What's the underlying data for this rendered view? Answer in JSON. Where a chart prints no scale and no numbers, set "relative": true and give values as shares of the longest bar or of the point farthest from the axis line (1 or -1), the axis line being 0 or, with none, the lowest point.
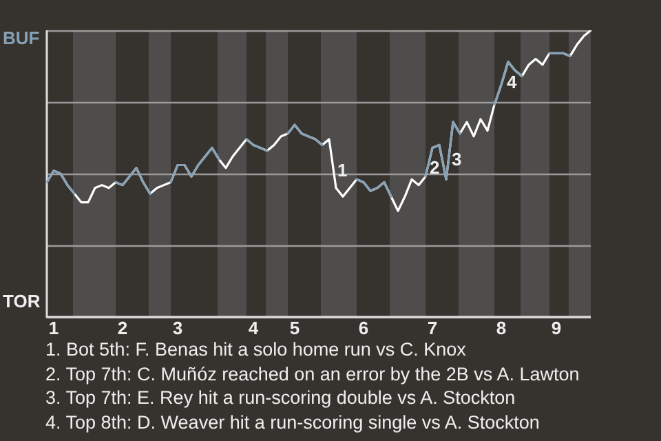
{
  "chart_data": {
    "type": "line",
    "relative": true,
    "categories": [
      null,
      "1",
      null,
      null,
      null,
      null,
      null,
      null,
      null,
      null,
      null,
      "2",
      null,
      null,
      null,
      null,
      null,
      null,
      null,
      "3",
      null,
      null,
      null,
      null,
      null,
      null,
      null,
      null,
      null,
      null,
      "4",
      null,
      null,
      null,
      null,
      null,
      "5",
      null,
      null,
      null,
      null,
      null,
      null,
      null,
      null,
      null,
      "6",
      null,
      null,
      null,
      null,
      null,
      null,
      null,
      null,
      null,
      "7",
      null,
      null,
      null,
      null,
      null,
      null,
      null,
      null,
      null,
      "8",
      null,
      null,
      null,
      null,
      null,
      null,
      null,
      "9",
      null,
      null,
      null,
      null,
      null
    ],
    "series": [
      {
        "color": "#86a1b5",
        "values": [
          0.47,
          0.51,
          0.5,
          0.46,
          0.43,
          null,
          null,
          null,
          null,
          null,
          0.47,
          0.46,
          0.49,
          0.52,
          0.47,
          0.43,
          null,
          null,
          0.47,
          0.53,
          0.53,
          0.49,
          0.53,
          0.56,
          0.59,
          0.55,
          null,
          null,
          null,
          0.62,
          0.6,
          0.59,
          0.58,
          null,
          null,
          0.64,
          0.67,
          0.64,
          0.63,
          0.62,
          0.6,
          null,
          null,
          null,
          null,
          0.48,
          0.47,
          0.44,
          0.45,
          0.47,
          0.42,
          null,
          null,
          null,
          null,
          0.49,
          0.59,
          0.6,
          0.48,
          0.68,
          0.64,
          null,
          null,
          null,
          null,
          0.74,
          0.81,
          0.89,
          0.86,
          0.84,
          null,
          null,
          null,
          0.92,
          0.92,
          0.92,
          0.91,
          null,
          null,
          null
        ]
      },
      {
        "color": "#ffffff",
        "values": [
          0.47,
          0.51,
          0.5,
          0.46,
          0.43,
          0.4,
          0.4,
          0.45,
          0.46,
          0.45,
          0.47,
          0.46,
          0.49,
          0.52,
          0.47,
          0.43,
          0.45,
          0.46,
          0.47,
          0.53,
          0.53,
          0.49,
          0.53,
          0.56,
          0.59,
          0.55,
          0.52,
          0.56,
          0.59,
          0.62,
          0.6,
          0.59,
          0.58,
          0.6,
          0.63,
          0.64,
          0.67,
          0.64,
          0.63,
          0.62,
          0.6,
          0.62,
          0.45,
          0.42,
          0.45,
          0.48,
          0.47,
          0.44,
          0.45,
          0.47,
          0.42,
          0.37,
          0.42,
          0.48,
          0.46,
          0.49,
          0.59,
          0.6,
          0.48,
          0.68,
          0.64,
          0.68,
          0.63,
          0.69,
          0.65,
          0.74,
          0.81,
          0.89,
          0.86,
          0.84,
          0.88,
          0.9,
          0.88,
          0.92,
          0.92,
          0.92,
          0.91,
          0.95,
          0.98,
          1
        ]
      }
    ],
    "grid": "y",
    "marker": "none",
    "annotations": [
      "BUF",
      "TOR",
      "1",
      "2",
      "3",
      "4",
      "1. Bot 5th: F. Benas hit a solo home run vs C. Knox",
      "2. Top 7th: C. Muñóz reached on an error by the 2B vs A. Lawton",
      "3. Top 7th: E. Rey hit a run-scoring double vs A. Stockton",
      "4. Top 8th: D. Weaver hit a run-scoring single vs A. Stockton"
    ]
  }
}
